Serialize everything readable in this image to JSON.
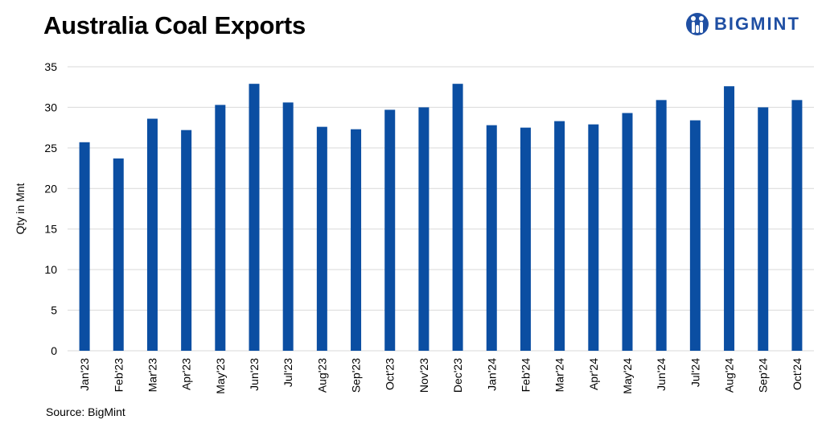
{
  "title": "Australia Coal Exports",
  "brand": {
    "name": "BIGMINT",
    "color": "#1f4fa3"
  },
  "source": "Source: BigMint",
  "chart_data": {
    "type": "bar",
    "title": "Australia Coal Exports",
    "xlabel": "",
    "ylabel": "Qty in Mnt",
    "ylim": [
      0,
      35
    ],
    "yticks": [
      0,
      5,
      10,
      15,
      20,
      25,
      30,
      35
    ],
    "grid": true,
    "bar_color": "#0b4ea2",
    "categories": [
      "Jan'23",
      "Feb'23",
      "Mar'23",
      "Apr'23",
      "May'23",
      "Jun'23",
      "Jul'23",
      "Aug'23",
      "Sep'23",
      "Oct'23",
      "Nov'23",
      "Dec'23",
      "Jan'24",
      "Feb'24",
      "Mar'24",
      "Apr'24",
      "May'24",
      "Jun'24",
      "Jul'24",
      "Aug'24",
      "Sep'24",
      "Oct'24"
    ],
    "values": [
      25.7,
      23.7,
      28.6,
      27.2,
      30.3,
      32.9,
      30.6,
      27.6,
      27.3,
      29.7,
      30.0,
      32.9,
      27.8,
      27.5,
      28.3,
      27.9,
      29.3,
      30.9,
      28.4,
      32.6,
      30.0,
      30.9
    ]
  }
}
